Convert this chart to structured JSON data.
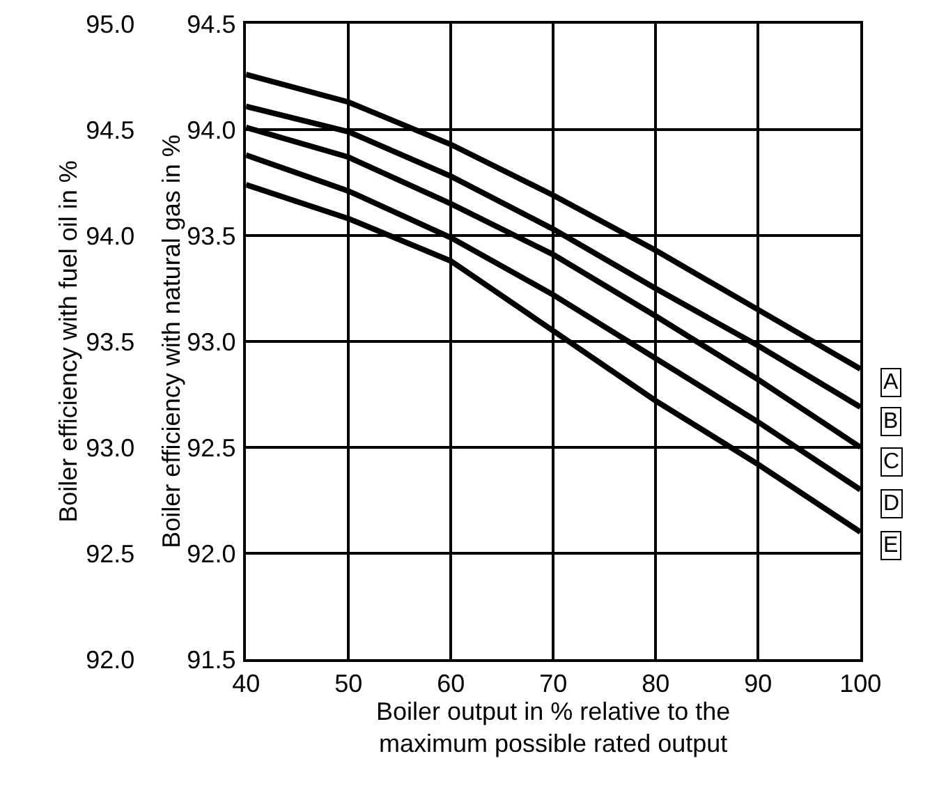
{
  "chart_data": {
    "type": "line",
    "xlabel": "Boiler output in % relative to the\nmaximum possible rated output",
    "ylabel": "Boiler efficiency with natural gas in %",
    "y2label": "Boiler efficiency with fuel oil in %",
    "x": [
      40,
      50,
      60,
      70,
      80,
      90,
      100
    ],
    "series": [
      {
        "name": "A",
        "color": "#000000",
        "values": [
          94.26,
          94.13,
          93.93,
          93.69,
          93.43,
          93.15,
          92.87
        ]
      },
      {
        "name": "B",
        "color": "#000000",
        "values": [
          94.11,
          93.99,
          93.78,
          93.53,
          93.25,
          92.98,
          92.69
        ]
      },
      {
        "name": "C",
        "color": "#000000",
        "values": [
          94.01,
          93.87,
          93.65,
          93.41,
          93.12,
          92.82,
          92.5
        ]
      },
      {
        "name": "D",
        "color": "#000000",
        "values": [
          93.88,
          93.71,
          93.49,
          93.22,
          92.92,
          92.62,
          92.3
        ]
      },
      {
        "name": "E",
        "color": "#000000",
        "values": [
          93.74,
          93.58,
          93.38,
          93.05,
          92.72,
          92.42,
          92.1
        ]
      }
    ],
    "xlim": [
      40,
      100
    ],
    "xticks": [
      40,
      50,
      60,
      70,
      80,
      90,
      100
    ],
    "ylim": [
      91.5,
      94.5
    ],
    "yticks": [
      91.5,
      {
        "value": 92,
        "label": "92.0"
      },
      92.5,
      {
        "value": 93,
        "label": "93.0"
      },
      93.5,
      {
        "value": 94,
        "label": "94.0"
      },
      94.5
    ],
    "y2lim": [
      92,
      95
    ],
    "y2ticks": [
      {
        "value": 92,
        "label": "92.0"
      },
      92.5,
      {
        "value": 93,
        "label": "93.0"
      },
      93.5,
      {
        "value": 94,
        "label": "94.0"
      },
      94.5,
      {
        "value": 95,
        "label": "95.0"
      }
    ],
    "grid": true,
    "legend": "right",
    "marker": "none",
    "line_style": "solid"
  }
}
